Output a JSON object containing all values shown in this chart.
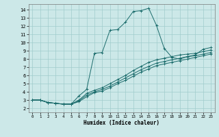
{
  "xlabel": "Humidex (Indice chaleur)",
  "background_color": "#cce8e8",
  "grid_color": "#a0cccc",
  "line_color": "#1a6b6b",
  "xlim": [
    -0.5,
    23.5
  ],
  "ylim": [
    1.5,
    14.7
  ],
  "xticks": [
    0,
    1,
    2,
    3,
    4,
    5,
    6,
    7,
    8,
    9,
    10,
    11,
    12,
    13,
    14,
    15,
    16,
    17,
    18,
    19,
    20,
    21,
    22,
    23
  ],
  "yticks": [
    2,
    3,
    4,
    5,
    6,
    7,
    8,
    9,
    10,
    11,
    12,
    13,
    14
  ],
  "lines": [
    {
      "x": [
        0,
        1,
        2,
        3,
        4,
        5,
        6,
        7,
        8,
        9,
        10,
        11,
        12,
        13,
        14,
        15,
        16,
        17,
        18,
        19,
        20,
        21,
        22,
        23
      ],
      "y": [
        3.0,
        3.0,
        2.7,
        2.6,
        2.5,
        2.5,
        3.5,
        4.3,
        8.7,
        8.8,
        11.5,
        11.6,
        12.5,
        13.8,
        13.9,
        14.2,
        12.1,
        9.3,
        8.2,
        8.0,
        8.3,
        8.5,
        9.2,
        9.4
      ]
    },
    {
      "x": [
        0,
        1,
        2,
        3,
        4,
        5,
        6,
        7,
        8,
        9,
        10,
        11,
        12,
        13,
        14,
        15,
        16,
        17,
        18,
        19,
        20,
        21,
        22,
        23
      ],
      "y": [
        3.0,
        3.0,
        2.7,
        2.6,
        2.5,
        2.5,
        3.0,
        3.8,
        4.2,
        4.5,
        5.0,
        5.5,
        6.0,
        6.6,
        7.1,
        7.6,
        7.9,
        8.1,
        8.3,
        8.5,
        8.6,
        8.7,
        8.9,
        9.1
      ]
    },
    {
      "x": [
        0,
        1,
        2,
        3,
        4,
        5,
        6,
        7,
        8,
        9,
        10,
        11,
        12,
        13,
        14,
        15,
        16,
        17,
        18,
        19,
        20,
        21,
        22,
        23
      ],
      "y": [
        3.0,
        3.0,
        2.7,
        2.6,
        2.5,
        2.5,
        2.9,
        3.6,
        4.0,
        4.3,
        4.7,
        5.2,
        5.7,
        6.2,
        6.7,
        7.1,
        7.5,
        7.7,
        7.9,
        8.1,
        8.3,
        8.4,
        8.6,
        8.8
      ]
    },
    {
      "x": [
        0,
        1,
        2,
        3,
        4,
        5,
        6,
        7,
        8,
        9,
        10,
        11,
        12,
        13,
        14,
        15,
        16,
        17,
        18,
        19,
        20,
        21,
        22,
        23
      ],
      "y": [
        3.0,
        3.0,
        2.7,
        2.6,
        2.5,
        2.5,
        2.8,
        3.4,
        3.9,
        4.1,
        4.5,
        5.0,
        5.4,
        5.9,
        6.4,
        6.8,
        7.2,
        7.4,
        7.6,
        7.8,
        8.0,
        8.2,
        8.4,
        8.6
      ]
    }
  ],
  "figsize": [
    3.2,
    2.0
  ],
  "dpi": 100
}
